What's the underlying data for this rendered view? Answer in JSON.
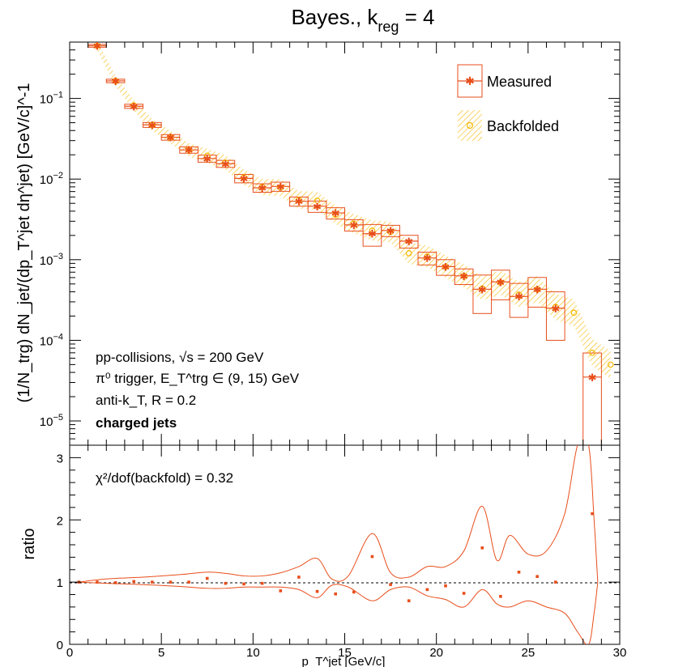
{
  "title": "Bayes., k",
  "title_sub": "reg",
  "title_tail": " = 4",
  "upper_panel": {
    "ylabel": "(1/N_trg) dN_jet/(dp_T^jet dη^jet) [GeV/c]^-1",
    "yscale": "log",
    "ylim": [
      5e-06,
      0.5
    ],
    "yticks": [
      {
        "v": 0.1,
        "base": "10",
        "exp": "−1"
      },
      {
        "v": 0.01,
        "base": "10",
        "exp": "−2"
      },
      {
        "v": 0.001,
        "base": "10",
        "exp": "−3"
      },
      {
        "v": 0.0001,
        "base": "10",
        "exp": "−4"
      },
      {
        "v": 1e-05,
        "base": "10",
        "exp": "−5"
      }
    ],
    "legend": [
      {
        "name": "Measured",
        "color": "#e84e1b"
      },
      {
        "name": "Backfolded",
        "color": "#f5b800"
      }
    ],
    "annotations": {
      "line1": "pp-collisions, √s = 200 GeV",
      "line2": "π⁰ trigger, E_T^trg ∈ (9, 15) GeV",
      "line3": "anti-k_T, R = 0.2",
      "line4": "charged jets"
    }
  },
  "lower_panel": {
    "ylabel": "ratio",
    "ylim": [
      0,
      3.2
    ],
    "yticks": [
      0,
      1,
      2,
      3
    ],
    "annotation": "χ²/dof(backfold) = 0.32"
  },
  "xaxis": {
    "label": "p_T^jet [GeV/c]",
    "xlim": [
      0,
      30
    ],
    "xticks": [
      0,
      5,
      10,
      15,
      20,
      25,
      30
    ]
  },
  "chart_data": {
    "type": "scatter",
    "x": [
      1.5,
      2.5,
      3.5,
      4.5,
      5.5,
      6.5,
      7.5,
      8.5,
      9.5,
      10.5,
      11.5,
      12.5,
      13.5,
      14.5,
      15.5,
      16.5,
      17.5,
      18.5,
      19.5,
      20.5,
      21.5,
      22.5,
      23.5,
      24.5,
      25.5,
      26.5,
      27.5,
      28.5,
      29.5
    ],
    "series": [
      {
        "name": "Measured",
        "color": "#e84e1b",
        "values": [
          0.45,
          0.165,
          0.08,
          0.047,
          0.033,
          0.023,
          0.018,
          0.0155,
          0.0102,
          0.0078,
          0.0081,
          0.0053,
          0.0046,
          0.0038,
          0.0027,
          0.0021,
          0.0023,
          0.0017,
          0.00105,
          0.00082,
          0.00063,
          0.00043,
          0.00053,
          0.00035,
          0.00043,
          0.00025,
          null,
          3.5e-05,
          null
        ],
        "box_half_height_frac": [
          0.04,
          0.05,
          0.06,
          0.07,
          0.08,
          0.09,
          0.1,
          0.1,
          0.12,
          0.12,
          0.13,
          0.13,
          0.16,
          0.16,
          0.16,
          0.3,
          0.16,
          0.18,
          0.18,
          0.22,
          0.22,
          0.5,
          0.4,
          0.45,
          0.4,
          0.6,
          null,
          0.99,
          null
        ]
      },
      {
        "name": "Backfolded",
        "color": "#f5b800",
        "values": [
          0.45,
          0.165,
          0.082,
          0.047,
          0.033,
          0.023,
          0.0195,
          0.016,
          0.0105,
          0.008,
          0.0078,
          0.0055,
          0.0054,
          0.0036,
          0.0028,
          0.0023,
          0.0022,
          0.0012,
          0.0011,
          0.00082,
          0.00063,
          0.00044,
          0.00052,
          0.00037,
          0.00043,
          0.00026,
          0.00022,
          7e-05,
          5e-05
        ]
      }
    ],
    "ratio": {
      "x": [
        0.5,
        1.5,
        2.5,
        3.5,
        4.5,
        5.5,
        6.5,
        7.5,
        8.5,
        9.5,
        10.5,
        11.5,
        12.5,
        13.5,
        14.5,
        15.5,
        16.5,
        17.5,
        18.5,
        19.5,
        20.5,
        21.5,
        22.5,
        23.5,
        24.5,
        25.5,
        26.5,
        28.5
      ],
      "values": [
        1.0,
        1.0,
        0.99,
        1.01,
        1.0,
        1.0,
        1.0,
        1.06,
        0.98,
        0.97,
        0.98,
        0.86,
        1.08,
        0.85,
        0.81,
        0.84,
        1.41,
        0.96,
        0.7,
        0.88,
        0.94,
        0.82,
        1.55,
        0.77,
        1.16,
        1.09,
        1.0,
        2.1
      ],
      "band_x": [
        0.5,
        2,
        4,
        6,
        7.5,
        8.5,
        9.5,
        10.5,
        11.5,
        12.5,
        13.5,
        14.3,
        15.2,
        16.5,
        17.5,
        18.5,
        19.5,
        20.5,
        21.5,
        22.5,
        23.3,
        24,
        25,
        26,
        27,
        27.7,
        28.3,
        28.6,
        28.8
      ],
      "band_upper": [
        1.0,
        1.05,
        1.08,
        1.12,
        1.16,
        1.14,
        1.1,
        1.1,
        1.15,
        1.25,
        1.38,
        1.05,
        1.1,
        1.78,
        1.15,
        1.08,
        1.25,
        1.25,
        1.5,
        2.22,
        1.35,
        1.75,
        1.45,
        1.5,
        2.1,
        3.2,
        3.2,
        2.0,
        1.0
      ],
      "band_lower": [
        1.0,
        0.98,
        0.96,
        0.93,
        0.9,
        0.9,
        0.92,
        0.92,
        0.92,
        0.88,
        0.75,
        0.95,
        0.92,
        0.7,
        0.88,
        0.92,
        0.78,
        0.72,
        0.6,
        0.88,
        0.65,
        0.6,
        0.7,
        0.6,
        0.5,
        0.2,
        0.0,
        0.5,
        1.0
      ]
    }
  }
}
